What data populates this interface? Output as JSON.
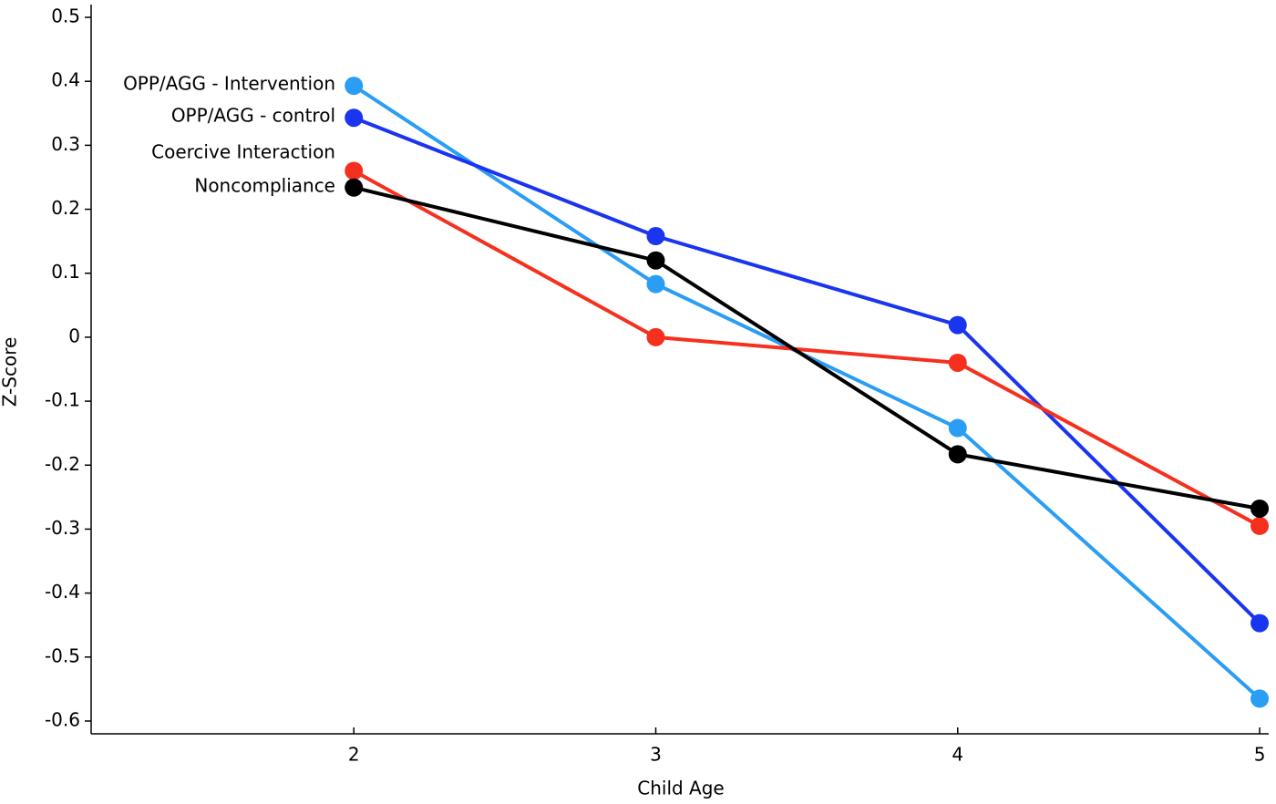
{
  "chart_data": {
    "type": "line",
    "x_label": "Child Age",
    "y_label": "Z-Score",
    "x": [
      2,
      3,
      4,
      5
    ],
    "xlim": [
      1.13,
      5.03
    ],
    "xticks": [
      2,
      3,
      4,
      5
    ],
    "ylim": [
      -0.62,
      0.52
    ],
    "yticks": [
      -0.6,
      -0.5,
      -0.4,
      -0.3,
      -0.2,
      -0.1,
      0,
      0.1,
      0.2,
      0.3,
      0.4,
      0.5
    ],
    "grid": false,
    "series": [
      {
        "name": "OPP/AGG - Intervention",
        "color": "#2a9df4",
        "values": [
          0.393,
          0.083,
          -0.142,
          -0.565
        ]
      },
      {
        "name": "OPP/AGG - control",
        "color": "#1a35f0",
        "values": [
          0.343,
          0.158,
          0.019,
          -0.447
        ]
      },
      {
        "name": "Coercive Interaction",
        "color": "#f5301e",
        "values": [
          0.26,
          0.0,
          -0.04,
          -0.295
        ]
      },
      {
        "name": "Noncompliance",
        "color": "#000000",
        "values": [
          0.234,
          0.12,
          -0.183,
          -0.268
        ]
      }
    ]
  }
}
